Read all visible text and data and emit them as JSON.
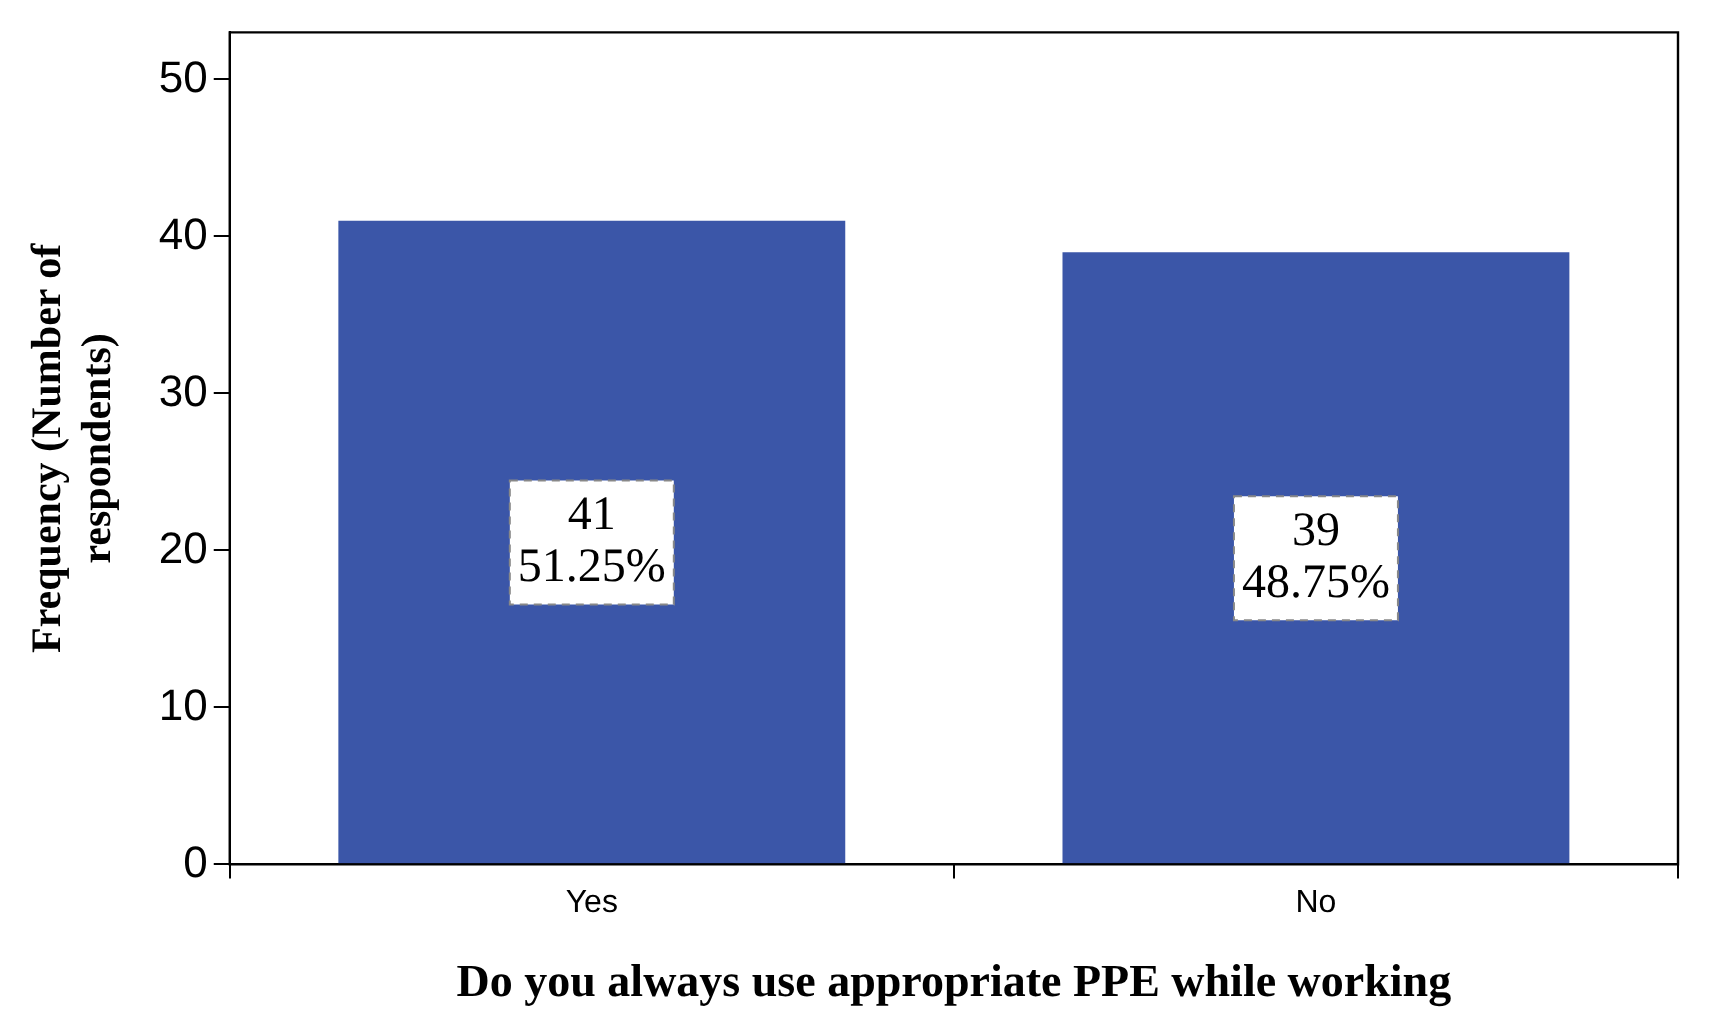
{
  "chart_data": {
    "type": "bar",
    "xlabel": "Do you always use appropriate PPE while working",
    "ylabel": "Frequency (Number of respondents)",
    "categories": [
      "Yes",
      "No"
    ],
    "values": [
      41,
      39
    ],
    "color": "#3b56a8",
    "value_labels": [
      "41\n51.25%",
      "39\n48.75%"
    ],
    "ylim": [
      0,
      53
    ],
    "yticks": [
      0,
      10,
      20,
      30,
      40,
      50
    ],
    "grid": false,
    "legend": false
  }
}
